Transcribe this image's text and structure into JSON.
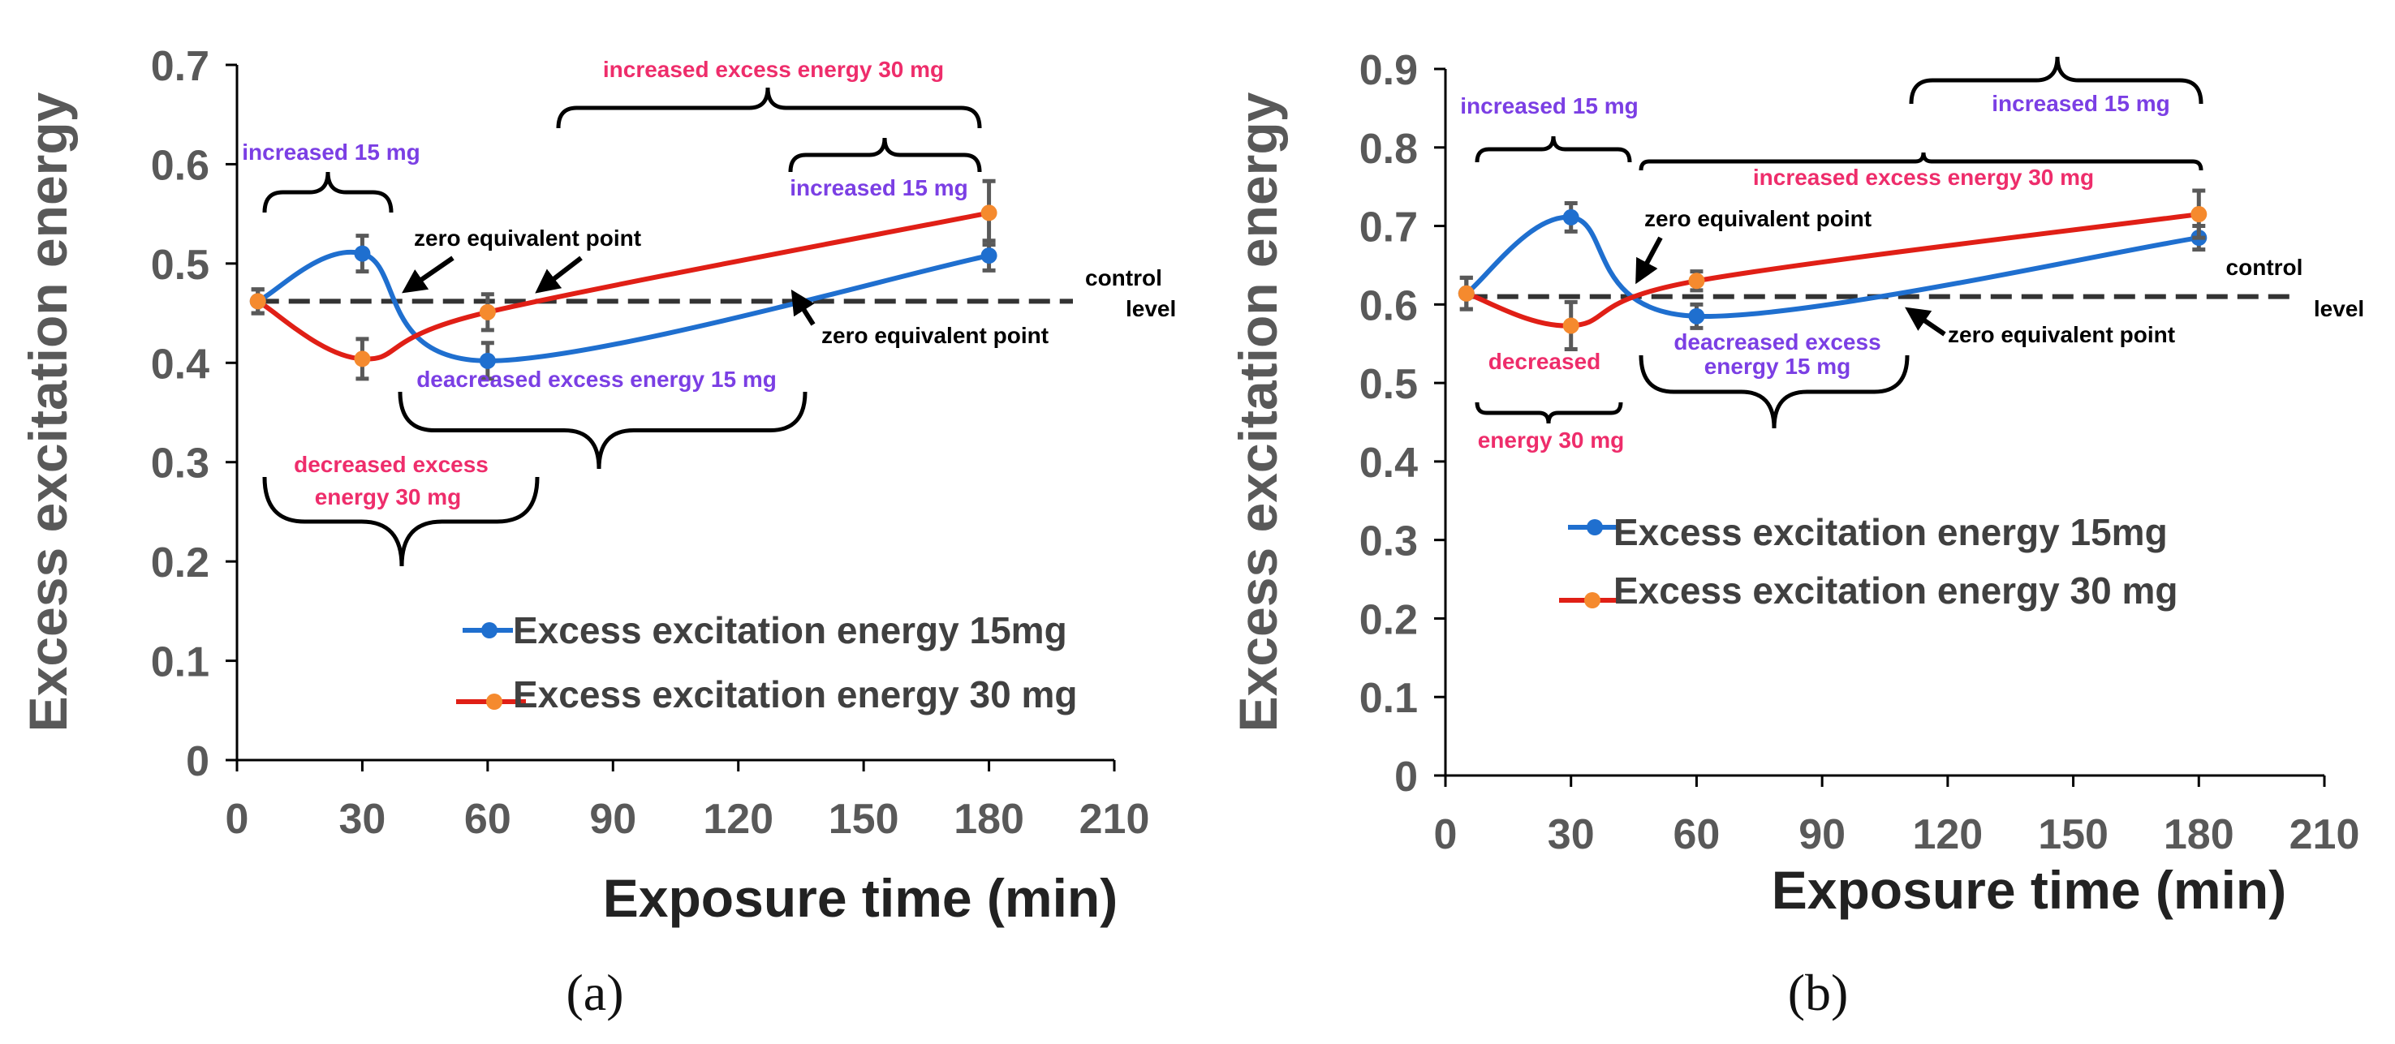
{
  "colors": {
    "blue": "#1f6fcf",
    "orange": "#f58a2e",
    "red": "#e01f16",
    "gray": "#595959",
    "dark": "#222222",
    "purple": "#7b3fe4",
    "pink": "#ee2d6b",
    "black": "#000000"
  },
  "chart_data": [
    {
      "type": "line",
      "panel_label": "(a)",
      "xlabel": "Exposure time (min)",
      "ylabel": "Excess excitation energy",
      "xlim": [
        0,
        210
      ],
      "ylim": [
        0,
        0.7
      ],
      "xticks": [
        "0",
        "30",
        "60",
        "90",
        "120",
        "150",
        "180",
        "210"
      ],
      "yticks": [
        "0",
        "0.1",
        "0.2",
        "0.3",
        "0.4",
        "0.5",
        "0.6",
        "0.7"
      ],
      "control_level": 0.462,
      "series": [
        {
          "name": "Excess excitation energy 15mg",
          "x": [
            5,
            30,
            60,
            180
          ],
          "values": [
            0.462,
            0.51,
            0.402,
            0.508
          ],
          "errors": [
            0.012,
            0.018,
            0.018,
            0.015
          ]
        },
        {
          "name": "Excess excitation energy 30 mg",
          "x": [
            5,
            30,
            60,
            180
          ],
          "values": [
            0.462,
            0.404,
            0.451,
            0.551
          ],
          "errors": [
            0.012,
            0.02,
            0.018,
            0.032
          ]
        }
      ],
      "annotations": [
        {
          "text": "increased 15 mg",
          "color": "purple"
        },
        {
          "text": "zero equivalent point",
          "color": "black"
        },
        {
          "text": "increased excess energy 30 mg",
          "color": "pink"
        },
        {
          "text": "increased 15 mg",
          "color": "purple"
        },
        {
          "text": "control",
          "color": "black"
        },
        {
          "text": "level",
          "color": "black"
        },
        {
          "text": "zero equivalent point",
          "color": "black"
        },
        {
          "text": "deacreased excess energy 15 mg",
          "color": "purple"
        },
        {
          "text": "decreased excess",
          "color": "pink"
        },
        {
          "text": "energy 30 mg",
          "color": "pink"
        }
      ]
    },
    {
      "type": "line",
      "panel_label": "(b)",
      "xlabel": "Exposure time (min)",
      "ylabel": "Excess excitation energy",
      "xlim": [
        0,
        210
      ],
      "ylim": [
        0,
        0.9
      ],
      "xticks": [
        "0",
        "30",
        "60",
        "90",
        "120",
        "150",
        "180",
        "210"
      ],
      "yticks": [
        "0",
        "0.1",
        "0.2",
        "0.3",
        "0.4",
        "0.5",
        "0.6",
        "0.7",
        "0.8",
        "0.9"
      ],
      "control_level": 0.61,
      "series": [
        {
          "name": "Excess excitation energy 15mg",
          "x": [
            5,
            30,
            60,
            180
          ],
          "values": [
            0.614,
            0.711,
            0.585,
            0.685
          ],
          "errors": [
            0.02,
            0.018,
            0.015,
            0.015
          ]
        },
        {
          "name": "Excess excitation energy 30 mg",
          "x": [
            5,
            30,
            60,
            180
          ],
          "values": [
            0.614,
            0.573,
            0.63,
            0.715
          ],
          "errors": [
            0.02,
            0.03,
            0.012,
            0.03
          ]
        }
      ],
      "annotations": [
        {
          "text": "increased 15 mg",
          "color": "purple"
        },
        {
          "text": "increased 15 mg",
          "color": "purple"
        },
        {
          "text": "increased excess energy 30 mg",
          "color": "pink"
        },
        {
          "text": "zero equivalent point",
          "color": "black"
        },
        {
          "text": "control",
          "color": "black"
        },
        {
          "text": "level",
          "color": "black"
        },
        {
          "text": "decreased",
          "color": "pink"
        },
        {
          "text": "deacreased excess",
          "color": "purple"
        },
        {
          "text": "energy 15 mg",
          "color": "purple"
        },
        {
          "text": "zero equivalent point",
          "color": "black"
        },
        {
          "text": "energy 30 mg",
          "color": "pink"
        }
      ]
    }
  ]
}
